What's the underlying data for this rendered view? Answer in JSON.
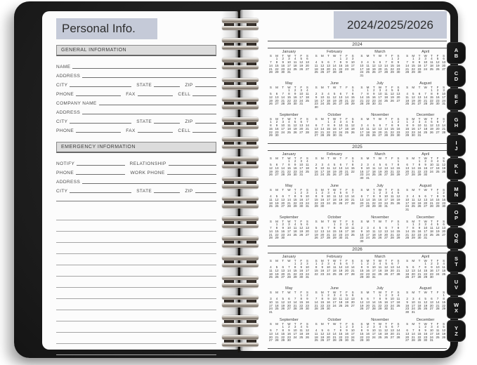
{
  "left_page": {
    "title": "Personal Info.",
    "sections": [
      {
        "header": "GENERAL INFORMATION",
        "rows": [
          [
            {
              "label": "NAME",
              "flex": 1
            }
          ],
          [
            {
              "label": "ADDRESS",
              "flex": 1
            }
          ],
          [
            {
              "label": "CITY",
              "flex": 2.6
            },
            {
              "label": "STATE",
              "flex": 1.1
            },
            {
              "label": "ZIP",
              "flex": 0.9
            }
          ],
          [
            {
              "label": "PHONE",
              "flex": 1.9
            },
            {
              "label": "FAX",
              "flex": 1.5
            },
            {
              "label": "CELL",
              "flex": 1.0
            }
          ],
          [
            {
              "label": "COMPANY NAME",
              "flex": 1
            }
          ],
          [
            {
              "label": "ADDRESS",
              "flex": 1
            }
          ],
          [
            {
              "label": "CITY",
              "flex": 2.6
            },
            {
              "label": "STATE",
              "flex": 1.1
            },
            {
              "label": "ZIP",
              "flex": 0.9
            }
          ],
          [
            {
              "label": "PHONE",
              "flex": 1.9
            },
            {
              "label": "FAX",
              "flex": 1.5
            },
            {
              "label": "CELL",
              "flex": 1.0
            }
          ]
        ]
      },
      {
        "header": "EMERGENCY INFORMATION",
        "rows": [
          [
            {
              "label": "NOTIFY",
              "flex": 1
            },
            {
              "label": "RELATIONSHIP",
              "flex": 1
            }
          ],
          [
            {
              "label": "PHONE",
              "flex": 1
            },
            {
              "label": "WORK PHONE",
              "flex": 1
            }
          ],
          [
            {
              "label": "ADDRESS",
              "flex": 1
            }
          ],
          [
            {
              "label": "CITY",
              "flex": 2.6
            },
            {
              "label": "STATE",
              "flex": 1.1
            },
            {
              "label": "ZIP",
              "flex": 0.9
            }
          ]
        ]
      }
    ],
    "ruled_line_count": 13
  },
  "right_page": {
    "title": "2024/2025/2026",
    "day_headers": [
      "S",
      "M",
      "T",
      "W",
      "T",
      "F",
      "S"
    ],
    "years": [
      {
        "year": "2024",
        "months": [
          {
            "name": "January",
            "first_dow": 1,
            "days": 31
          },
          {
            "name": "February",
            "first_dow": 4,
            "days": 29
          },
          {
            "name": "March",
            "first_dow": 5,
            "days": 31
          },
          {
            "name": "April",
            "first_dow": 1,
            "days": 30
          },
          {
            "name": "May",
            "first_dow": 3,
            "days": 31
          },
          {
            "name": "June",
            "first_dow": 6,
            "days": 30
          },
          {
            "name": "July",
            "first_dow": 1,
            "days": 31
          },
          {
            "name": "August",
            "first_dow": 4,
            "days": 31
          },
          {
            "name": "September",
            "first_dow": 0,
            "days": 30
          },
          {
            "name": "October",
            "first_dow": 2,
            "days": 31
          },
          {
            "name": "November",
            "first_dow": 5,
            "days": 30
          },
          {
            "name": "December",
            "first_dow": 0,
            "days": 31
          }
        ]
      },
      {
        "year": "2025",
        "months": [
          {
            "name": "January",
            "first_dow": 3,
            "days": 31
          },
          {
            "name": "February",
            "first_dow": 6,
            "days": 28
          },
          {
            "name": "March",
            "first_dow": 6,
            "days": 31
          },
          {
            "name": "April",
            "first_dow": 2,
            "days": 30
          },
          {
            "name": "May",
            "first_dow": 4,
            "days": 31
          },
          {
            "name": "June",
            "first_dow": 0,
            "days": 30
          },
          {
            "name": "July",
            "first_dow": 2,
            "days": 31
          },
          {
            "name": "August",
            "first_dow": 5,
            "days": 31
          },
          {
            "name": "September",
            "first_dow": 1,
            "days": 30
          },
          {
            "name": "October",
            "first_dow": 3,
            "days": 31
          },
          {
            "name": "November",
            "first_dow": 6,
            "days": 30
          },
          {
            "name": "December",
            "first_dow": 1,
            "days": 31
          }
        ]
      },
      {
        "year": "2026",
        "months": [
          {
            "name": "January",
            "first_dow": 4,
            "days": 31
          },
          {
            "name": "February",
            "first_dow": 0,
            "days": 28
          },
          {
            "name": "March",
            "first_dow": 0,
            "days": 31
          },
          {
            "name": "April",
            "first_dow": 3,
            "days": 30
          },
          {
            "name": "May",
            "first_dow": 5,
            "days": 31
          },
          {
            "name": "June",
            "first_dow": 1,
            "days": 30
          },
          {
            "name": "July",
            "first_dow": 3,
            "days": 31
          },
          {
            "name": "August",
            "first_dow": 6,
            "days": 31
          },
          {
            "name": "September",
            "first_dow": 2,
            "days": 30
          },
          {
            "name": "October",
            "first_dow": 4,
            "days": 31
          },
          {
            "name": "November",
            "first_dow": 0,
            "days": 30
          },
          {
            "name": "December",
            "first_dow": 2,
            "days": 31
          }
        ]
      }
    ]
  },
  "tabs": [
    "AB",
    "CD",
    "EF",
    "GH",
    "IJ",
    "KL",
    "MN",
    "OP",
    "QR",
    "ST",
    "UV",
    "WX",
    "YZ"
  ],
  "colors": {
    "highlight": "#c5cad8",
    "section_band": "#dcdcdc",
    "cover": "#1c1c1c",
    "tab": "#121212",
    "page": "#fcfcfc"
  }
}
